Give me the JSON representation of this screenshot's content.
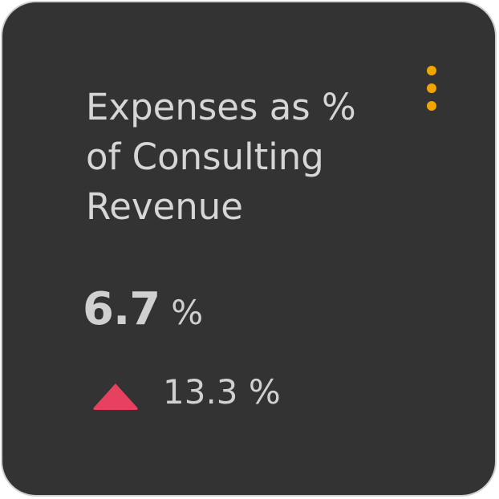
{
  "card": {
    "title": "Expenses as % of Consulting Revenue",
    "value": "6.7",
    "value_unit": "%",
    "change": "13.3 %",
    "change_direction": "up",
    "icons": {
      "menu": "vertical-ellipsis-icon",
      "trend": "triangle-up-icon"
    },
    "colors": {
      "background": "#333333",
      "accent": "#f0a500",
      "trend_up": "#e8405f"
    }
  }
}
